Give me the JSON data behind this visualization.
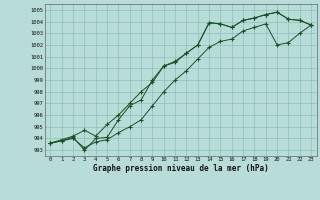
{
  "xlabel": "Graphe pression niveau de la mer (hPa)",
  "bg_color": "#b8ddd8",
  "grid_color": "#8abfb8",
  "line_color": "#1a5028",
  "x_labels": [
    "0",
    "1",
    "2",
    "3",
    "4",
    "5",
    "6",
    "7",
    "8",
    "9",
    "10",
    "11",
    "12",
    "13",
    "14",
    "15",
    "16",
    "17",
    "18",
    "19",
    "20",
    "21",
    "22",
    "23"
  ],
  "ylim": [
    992.5,
    1005.5
  ],
  "yticks": [
    993,
    994,
    995,
    996,
    997,
    998,
    999,
    1000,
    1001,
    1002,
    1003,
    1004,
    1005
  ],
  "line1": [
    993.6,
    993.8,
    994.1,
    993.0,
    994.0,
    994.1,
    995.6,
    996.8,
    997.3,
    999.0,
    1000.2,
    1000.5,
    1001.3,
    1002.0,
    1003.9,
    1003.8,
    1003.5,
    1004.1,
    1004.3,
    1004.6,
    1004.8,
    1004.2,
    1004.1,
    1003.7
  ],
  "line2": [
    993.6,
    993.9,
    994.2,
    994.7,
    994.2,
    995.2,
    996.0,
    997.0,
    998.0,
    998.8,
    1000.2,
    1000.6,
    1001.3,
    1002.0,
    1003.9,
    1003.8,
    1003.5,
    1004.1,
    1004.3,
    1004.6,
    1004.8,
    1004.2,
    1004.1,
    1003.7
  ],
  "line3": [
    993.6,
    993.8,
    994.0,
    993.2,
    993.7,
    993.9,
    994.5,
    995.0,
    995.6,
    996.8,
    998.0,
    999.0,
    999.8,
    1000.8,
    1001.8,
    1002.3,
    1002.5,
    1003.2,
    1003.5,
    1003.8,
    1002.0,
    1002.2,
    1003.0,
    1003.7
  ]
}
